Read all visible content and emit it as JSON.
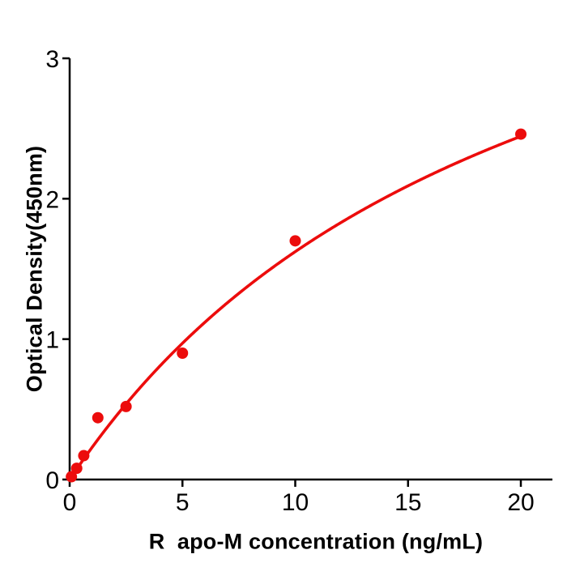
{
  "figure": {
    "background": "#ffffff"
  },
  "chart_data": {
    "type": "scatter",
    "title": "",
    "xlabel": "R  apo-M concentration (ng/mL)",
    "ylabel": "Optical Density(450nm)",
    "points": [
      {
        "x": 0.078,
        "y": 0.02
      },
      {
        "x": 0.3125,
        "y": 0.08
      },
      {
        "x": 0.625,
        "y": 0.17
      },
      {
        "x": 1.25,
        "y": 0.44
      },
      {
        "x": 2.5,
        "y": 0.52
      },
      {
        "x": 5,
        "y": 0.9
      },
      {
        "x": 10,
        "y": 1.7
      },
      {
        "x": 20,
        "y": 2.46
      }
    ],
    "xticks": [
      0,
      5,
      10,
      15,
      20
    ],
    "yticks": [
      0,
      1,
      2,
      3
    ],
    "xlim": [
      0,
      21.4
    ],
    "ylim": [
      0,
      3
    ],
    "grid": false,
    "legend": false,
    "marker_color": "#ec0c0c",
    "curve_color": "#ec0c0c",
    "axis_color": "#000000",
    "fit_curve": {
      "model": "michaelis_menten",
      "vmax": 4.95,
      "km": 20.5,
      "x_range": [
        0,
        20
      ]
    }
  }
}
